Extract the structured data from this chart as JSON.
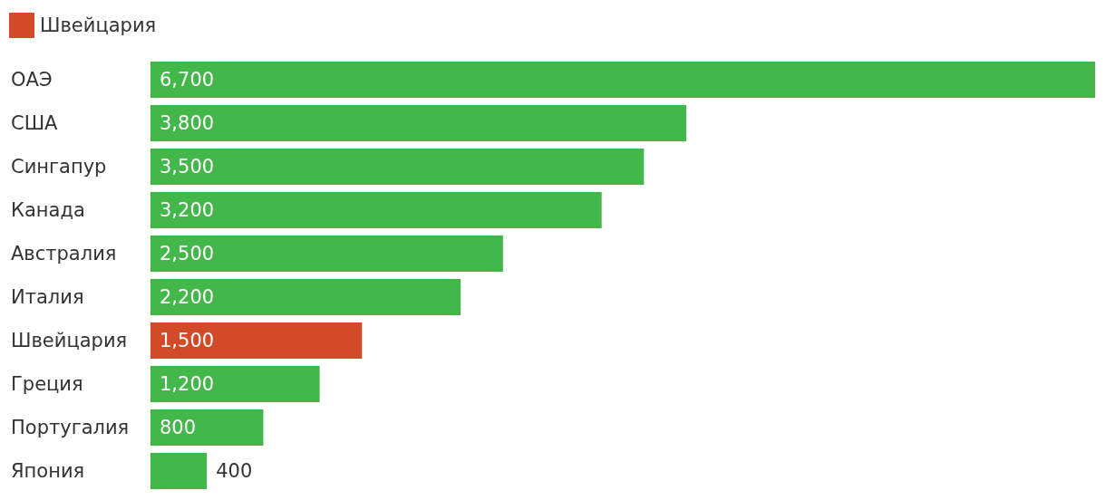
{
  "chart_data": {
    "type": "bar",
    "orientation": "horizontal",
    "legend": "top left",
    "categories": [
      "ОАЭ",
      "США",
      "Сингапур",
      "Канада",
      "Австралия",
      "Италия",
      "Швейцария",
      "Греция",
      "Португалия",
      "Япония"
    ],
    "series": [
      {
        "color": "#43b74a",
        "values": [
          6700,
          3800,
          3500,
          3200,
          2500,
          2200,
          null,
          1200,
          800,
          400
        ],
        "value_labels": [
          "6,700",
          "3,800",
          "3,500",
          "3,200",
          "2,500",
          "2,200",
          null,
          "1,200",
          "800",
          "400"
        ]
      },
      {
        "name": "Швейцария",
        "color": "#d14b28",
        "values": [
          null,
          null,
          null,
          null,
          null,
          null,
          1500,
          null,
          null,
          null
        ],
        "value_labels": [
          null,
          null,
          null,
          null,
          null,
          null,
          "1,500",
          null,
          null,
          null
        ]
      }
    ]
  }
}
